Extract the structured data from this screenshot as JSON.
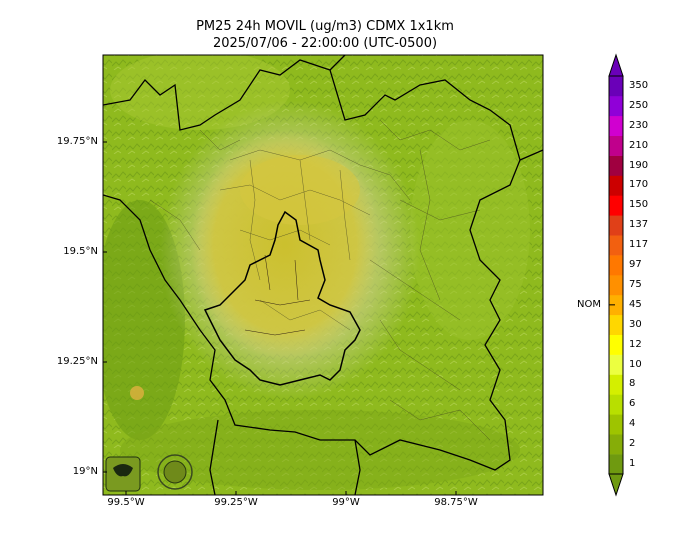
{
  "title_line1": "PM25 24h MOVIL (ug/m3) CDMX 1x1km",
  "title_line2": "2025/07/06 - 22:00:00 (UTC-0500)",
  "lat_labels": [
    "19.75°N",
    "19.5°N",
    "19.25°N",
    "19°N"
  ],
  "lon_labels": [
    "99.5°W",
    "99.25°W",
    "99°W",
    "98.75°W"
  ],
  "colorbar": {
    "levels": [
      "1",
      "2",
      "4",
      "6",
      "8",
      "10",
      "12",
      "30",
      "45",
      "75",
      "97",
      "117",
      "137",
      "150",
      "170",
      "190",
      "210",
      "230",
      "250",
      "350"
    ],
    "colors": [
      "#6f9a10",
      "#86ad08",
      "#9ec400",
      "#b8df00",
      "#d4ef00",
      "#ecff40",
      "#ffff00",
      "#ffd700",
      "#ffb000",
      "#ff9000",
      "#ff7800",
      "#f26010",
      "#e04018",
      "#ff0000",
      "#cc0000",
      "#a00040",
      "#c0008c",
      "#d000d0",
      "#9000d8",
      "#6a00b8"
    ],
    "nom_label": "NOM",
    "nom_level": "45"
  },
  "logos": [
    "sedema-logo",
    "cdmx-seal"
  ]
}
